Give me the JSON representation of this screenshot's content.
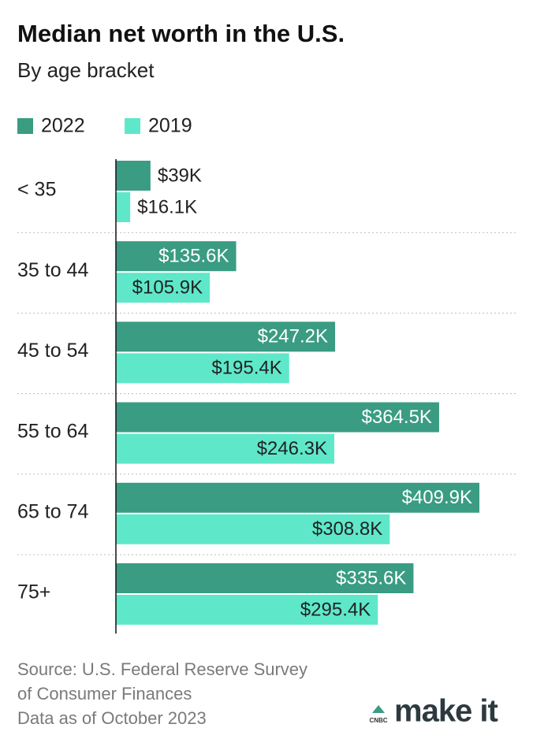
{
  "chart_data": {
    "type": "bar",
    "orientation": "horizontal",
    "title": "Median net worth in the U.S.",
    "subtitle": "By age bracket",
    "categories": [
      "< 35",
      "35 to 44",
      "45 to 54",
      "55 to 64",
      "65 to 74",
      "75+"
    ],
    "series": [
      {
        "name": "2022",
        "color": "#3a9c82",
        "values": [
          39,
          135.6,
          247.2,
          364.5,
          409.9,
          335.6
        ],
        "value_labels": [
          "$39K",
          "$135.6K",
          "$247.2K",
          "$364.5K",
          "$409.9K",
          "$335.6K"
        ]
      },
      {
        "name": "2019",
        "color": "#5ee8c9",
        "values": [
          16.1,
          105.9,
          195.4,
          246.3,
          308.8,
          295.4
        ],
        "value_labels": [
          "$16.1K",
          "$105.9K",
          "$195.4K",
          "$246.3K",
          "$308.8K",
          "$295.4K"
        ]
      }
    ],
    "source": [
      "Source: U.S. Federal Reserve Survey",
      "of Consumer Finances",
      "Data as of October 2023"
    ],
    "logo": {
      "brand": "CNBC",
      "name": "make it"
    }
  }
}
